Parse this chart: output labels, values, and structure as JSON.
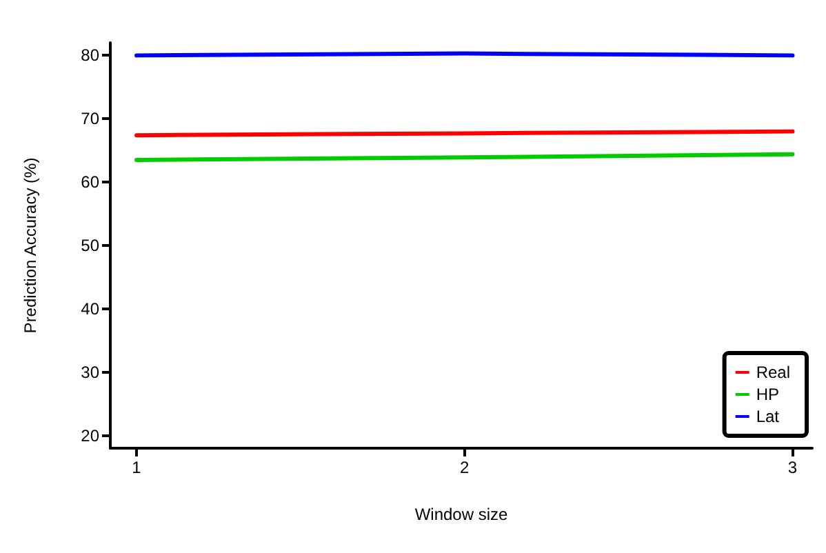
{
  "chart_data": {
    "type": "line",
    "xlabel": "Window size",
    "ylabel": "Prediction Accuracy (%)",
    "x": [
      1,
      2,
      3
    ],
    "xlim": [
      0.92,
      3.06
    ],
    "xticks": [
      1,
      2,
      3
    ],
    "ylim": [
      18,
      82
    ],
    "yticks": [
      20,
      30,
      40,
      50,
      60,
      70,
      80
    ],
    "series": [
      {
        "name": "Real",
        "color": "#ff0000",
        "values": [
          67.4,
          67.7,
          68.0
        ]
      },
      {
        "name": "HP",
        "color": "#00cc00",
        "values": [
          63.5,
          63.9,
          64.4
        ]
      },
      {
        "name": "Lat",
        "color": "#0000ff",
        "values": [
          80.0,
          80.3,
          80.0
        ]
      }
    ],
    "grid": false,
    "legend": "bottom right",
    "marker": "none",
    "line_style": "solid"
  }
}
